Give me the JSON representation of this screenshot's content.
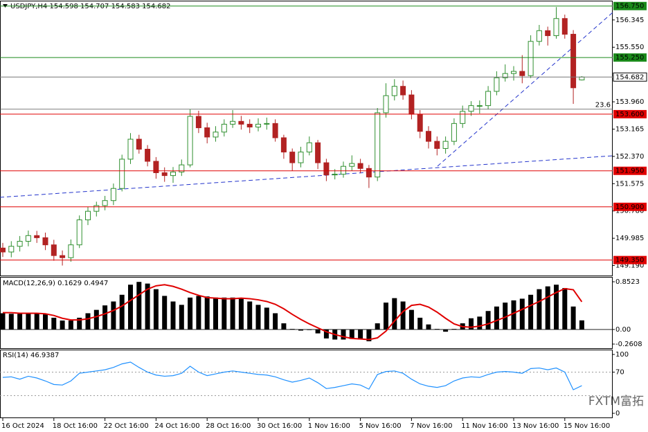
{
  "chart_data": [
    {
      "type": "candlestick",
      "symbol": "USDJPY,H4",
      "categories": [
        "16 Oct 2024",
        null,
        null,
        null,
        null,
        null,
        "18 Oct 16:00",
        null,
        null,
        null,
        null,
        null,
        "22 Oct 16:00",
        null,
        null,
        null,
        null,
        null,
        "24 Oct 16:00",
        null,
        null,
        null,
        null,
        null,
        "28 Oct 16:00",
        null,
        null,
        null,
        null,
        null,
        "30 Oct 16:00",
        null,
        null,
        null,
        null,
        null,
        "1 Nov 16:00",
        null,
        null,
        null,
        null,
        null,
        "5 Nov 16:00",
        null,
        null,
        null,
        null,
        null,
        "7 Nov 16:00",
        null,
        null,
        null,
        null,
        null,
        "11 Nov 16:00",
        null,
        null,
        null,
        null,
        null,
        "13 Nov 16:00",
        null,
        null,
        null,
        null,
        null,
        "15 Nov 16:00",
        null,
        null
      ],
      "open": [
        149.7,
        149.585,
        149.751,
        149.897,
        150.063,
        150.001,
        149.793,
        149.481,
        149.419,
        149.793,
        150.521,
        150.771,
        150.937,
        151.083,
        151.436,
        152.289,
        152.871,
        152.58,
        152.227,
        151.894,
        151.811,
        151.915,
        152.123,
        153.537,
        153.204,
        152.934,
        153.079,
        153.308,
        153.391,
        153.308,
        153.225,
        153.308,
        153.329,
        152.913,
        152.497,
        152.185,
        152.497,
        152.767,
        152.185,
        151.831,
        151.852,
        152.081,
        152.164,
        152.019,
        151.769,
        153.641,
        154.14,
        154.411,
        154.161,
        153.599,
        153.1,
        152.809,
        152.601,
        152.809,
        153.329,
        153.683,
        153.849,
        153.849,
        154.265,
        154.66,
        154.785,
        154.847,
        154.723,
        155.721,
        156.033,
        155.887,
        156.387,
        155.929,
        154.598
      ],
      "high": [
        149.85,
        149.9,
        150.05,
        150.21,
        150.2,
        150.15,
        149.94,
        149.63,
        149.95,
        150.65,
        150.9,
        151.05,
        151.22,
        151.58,
        152.42,
        153.05,
        153.0,
        152.7,
        152.35,
        152.05,
        152.06,
        152.28,
        153.75,
        153.7,
        153.35,
        153.25,
        153.45,
        153.72,
        153.55,
        153.45,
        153.48,
        153.5,
        153.45,
        153.0,
        152.6,
        152.65,
        152.95,
        152.85,
        152.3,
        152.0,
        152.22,
        152.4,
        152.3,
        152.12,
        153.78,
        154.5,
        154.62,
        154.58,
        154.3,
        153.72,
        153.25,
        152.95,
        152.95,
        153.48,
        153.85,
        153.98,
        154.0,
        154.42,
        154.85,
        155.05,
        155.0,
        155.32,
        155.9,
        156.2,
        156.15,
        156.72,
        156.5,
        156.05,
        154.707
      ],
      "low": [
        149.44,
        149.43,
        149.6,
        149.75,
        149.85,
        149.64,
        149.33,
        149.19,
        149.3,
        149.7,
        150.37,
        150.62,
        150.8,
        150.95,
        151.35,
        152.15,
        152.45,
        152.08,
        151.72,
        151.63,
        151.6,
        151.8,
        152.05,
        153.05,
        152.75,
        152.8,
        152.95,
        153.2,
        153.15,
        153.05,
        153.1,
        153.15,
        152.8,
        152.3,
        151.95,
        152.05,
        152.4,
        152.0,
        151.65,
        151.7,
        151.75,
        151.95,
        151.88,
        151.45,
        151.65,
        153.5,
        154.0,
        154.02,
        153.45,
        152.9,
        152.6,
        152.4,
        152.45,
        152.7,
        153.2,
        153.55,
        153.62,
        153.75,
        154.15,
        154.55,
        154.58,
        154.5,
        154.65,
        155.6,
        155.6,
        155.8,
        155.8,
        153.9,
        154.583
      ],
      "close": [
        149.585,
        149.751,
        149.897,
        150.063,
        150.001,
        149.793,
        149.481,
        149.419,
        149.793,
        150.521,
        150.771,
        150.937,
        151.083,
        151.436,
        152.289,
        152.871,
        152.58,
        152.227,
        151.894,
        151.811,
        151.915,
        152.123,
        153.537,
        153.204,
        152.934,
        153.079,
        153.308,
        153.391,
        153.308,
        153.225,
        153.308,
        153.329,
        152.913,
        152.497,
        152.185,
        152.497,
        152.767,
        152.185,
        151.831,
        151.852,
        152.081,
        152.164,
        152.019,
        151.769,
        153.641,
        154.14,
        154.411,
        154.161,
        153.599,
        153.1,
        152.809,
        152.601,
        152.809,
        153.329,
        153.683,
        153.849,
        153.849,
        154.265,
        154.66,
        154.785,
        154.847,
        154.723,
        155.721,
        156.033,
        155.887,
        156.387,
        155.929,
        154.369,
        154.682
      ],
      "up_color": "#2f8f2f",
      "down_color": "#b22222",
      "ylim": [
        148.899,
        156.886
      ],
      "yticks": [
        156.345,
        {
          "value": 155.55,
          "label": "155.550"
        },
        {
          "value": 153.96,
          "label": "153.960"
        },
        153.165,
        {
          "value": 152.37,
          "label": "152.370"
        },
        151.575,
        {
          "value": 150.78,
          "label": "150.780"
        },
        149.985,
        {
          "value": 149.19,
          "label": "149.190"
        }
      ],
      "levels": [
        {
          "value": 156.75,
          "label": "156.750",
          "color": "#1a8a1a"
        },
        {
          "value": 155.25,
          "label": "155.250",
          "color": "#1a8a1a"
        },
        {
          "value": 153.6,
          "label": "153.600",
          "color": "#e00000"
        },
        {
          "value": 151.95,
          "label": "151.950",
          "color": "#e00000"
        },
        {
          "value": 150.9,
          "label": "150.900",
          "color": "#e00000"
        },
        {
          "value": 149.35,
          "label": "149.350",
          "color": "#e00000"
        }
      ],
      "fib": {
        "level": 23.6,
        "price": 153.745
      }
    },
    {
      "type": "macd",
      "title": "MACD(12,26,9)",
      "histogram": [
        0.29,
        0.28,
        0.28,
        0.29,
        0.29,
        0.27,
        0.21,
        0.16,
        0.16,
        0.21,
        0.29,
        0.35,
        0.43,
        0.5,
        0.62,
        0.8,
        0.85,
        0.82,
        0.72,
        0.6,
        0.5,
        0.44,
        0.57,
        0.6,
        0.59,
        0.57,
        0.57,
        0.57,
        0.55,
        0.5,
        0.44,
        0.39,
        0.29,
        0.11,
        0.01,
        -0.02,
        -0.01,
        -0.07,
        -0.16,
        -0.18,
        -0.18,
        -0.17,
        -0.18,
        -0.21,
        0.11,
        0.48,
        0.56,
        0.5,
        0.35,
        0.21,
        0.09,
        0.01,
        -0.04,
        0.01,
        0.11,
        0.2,
        0.23,
        0.33,
        0.41,
        0.48,
        0.52,
        0.55,
        0.62,
        0.72,
        0.77,
        0.8,
        0.74,
        0.41,
        0.1629
      ],
      "signal": [
        0.3,
        0.3,
        0.29,
        0.29,
        0.29,
        0.28,
        0.25,
        0.2,
        0.17,
        0.17,
        0.19,
        0.23,
        0.28,
        0.34,
        0.42,
        0.52,
        0.62,
        0.72,
        0.78,
        0.8,
        0.77,
        0.72,
        0.66,
        0.61,
        0.57,
        0.56,
        0.55,
        0.55,
        0.56,
        0.55,
        0.53,
        0.5,
        0.45,
        0.37,
        0.27,
        0.18,
        0.1,
        0.03,
        -0.04,
        -0.09,
        -0.13,
        -0.16,
        -0.17,
        -0.18,
        -0.15,
        -0.03,
        0.15,
        0.32,
        0.43,
        0.45,
        0.4,
        0.31,
        0.2,
        0.1,
        0.05,
        0.04,
        0.06,
        0.1,
        0.16,
        0.22,
        0.29,
        0.36,
        0.43,
        0.5,
        0.58,
        0.66,
        0.73,
        0.71,
        0.4947
      ],
      "histogram_color": "#000000",
      "signal_color": "#e00000",
      "ylim": [
        -0.2608,
        0.8523
      ],
      "yticks": [
        0.8523,
        {
          "value": 0,
          "label": "0.00"
        },
        -0.2608
      ]
    },
    {
      "type": "rsi",
      "title": "RSI(14)",
      "values": [
        61,
        62,
        58,
        63,
        60,
        55,
        49,
        48,
        55,
        68,
        70,
        72,
        74,
        78,
        84,
        87,
        78,
        70,
        65,
        63,
        64,
        68,
        80,
        70,
        64,
        67,
        70,
        72,
        70,
        68,
        66,
        65,
        62,
        57,
        53,
        56,
        60,
        52,
        42,
        44,
        47,
        50,
        48,
        41,
        66,
        71,
        72,
        68,
        58,
        50,
        46,
        44,
        47,
        55,
        60,
        62,
        61,
        66,
        70,
        71,
        70,
        68,
        76,
        77,
        74,
        77,
        70,
        40,
        46.9387
      ],
      "color": "#1e90ff",
      "ylim": [
        0,
        100
      ],
      "yticks": [
        100,
        70,
        0
      ],
      "levels": [
        70,
        30
      ]
    }
  ],
  "watermark": "FXTM富拓"
}
